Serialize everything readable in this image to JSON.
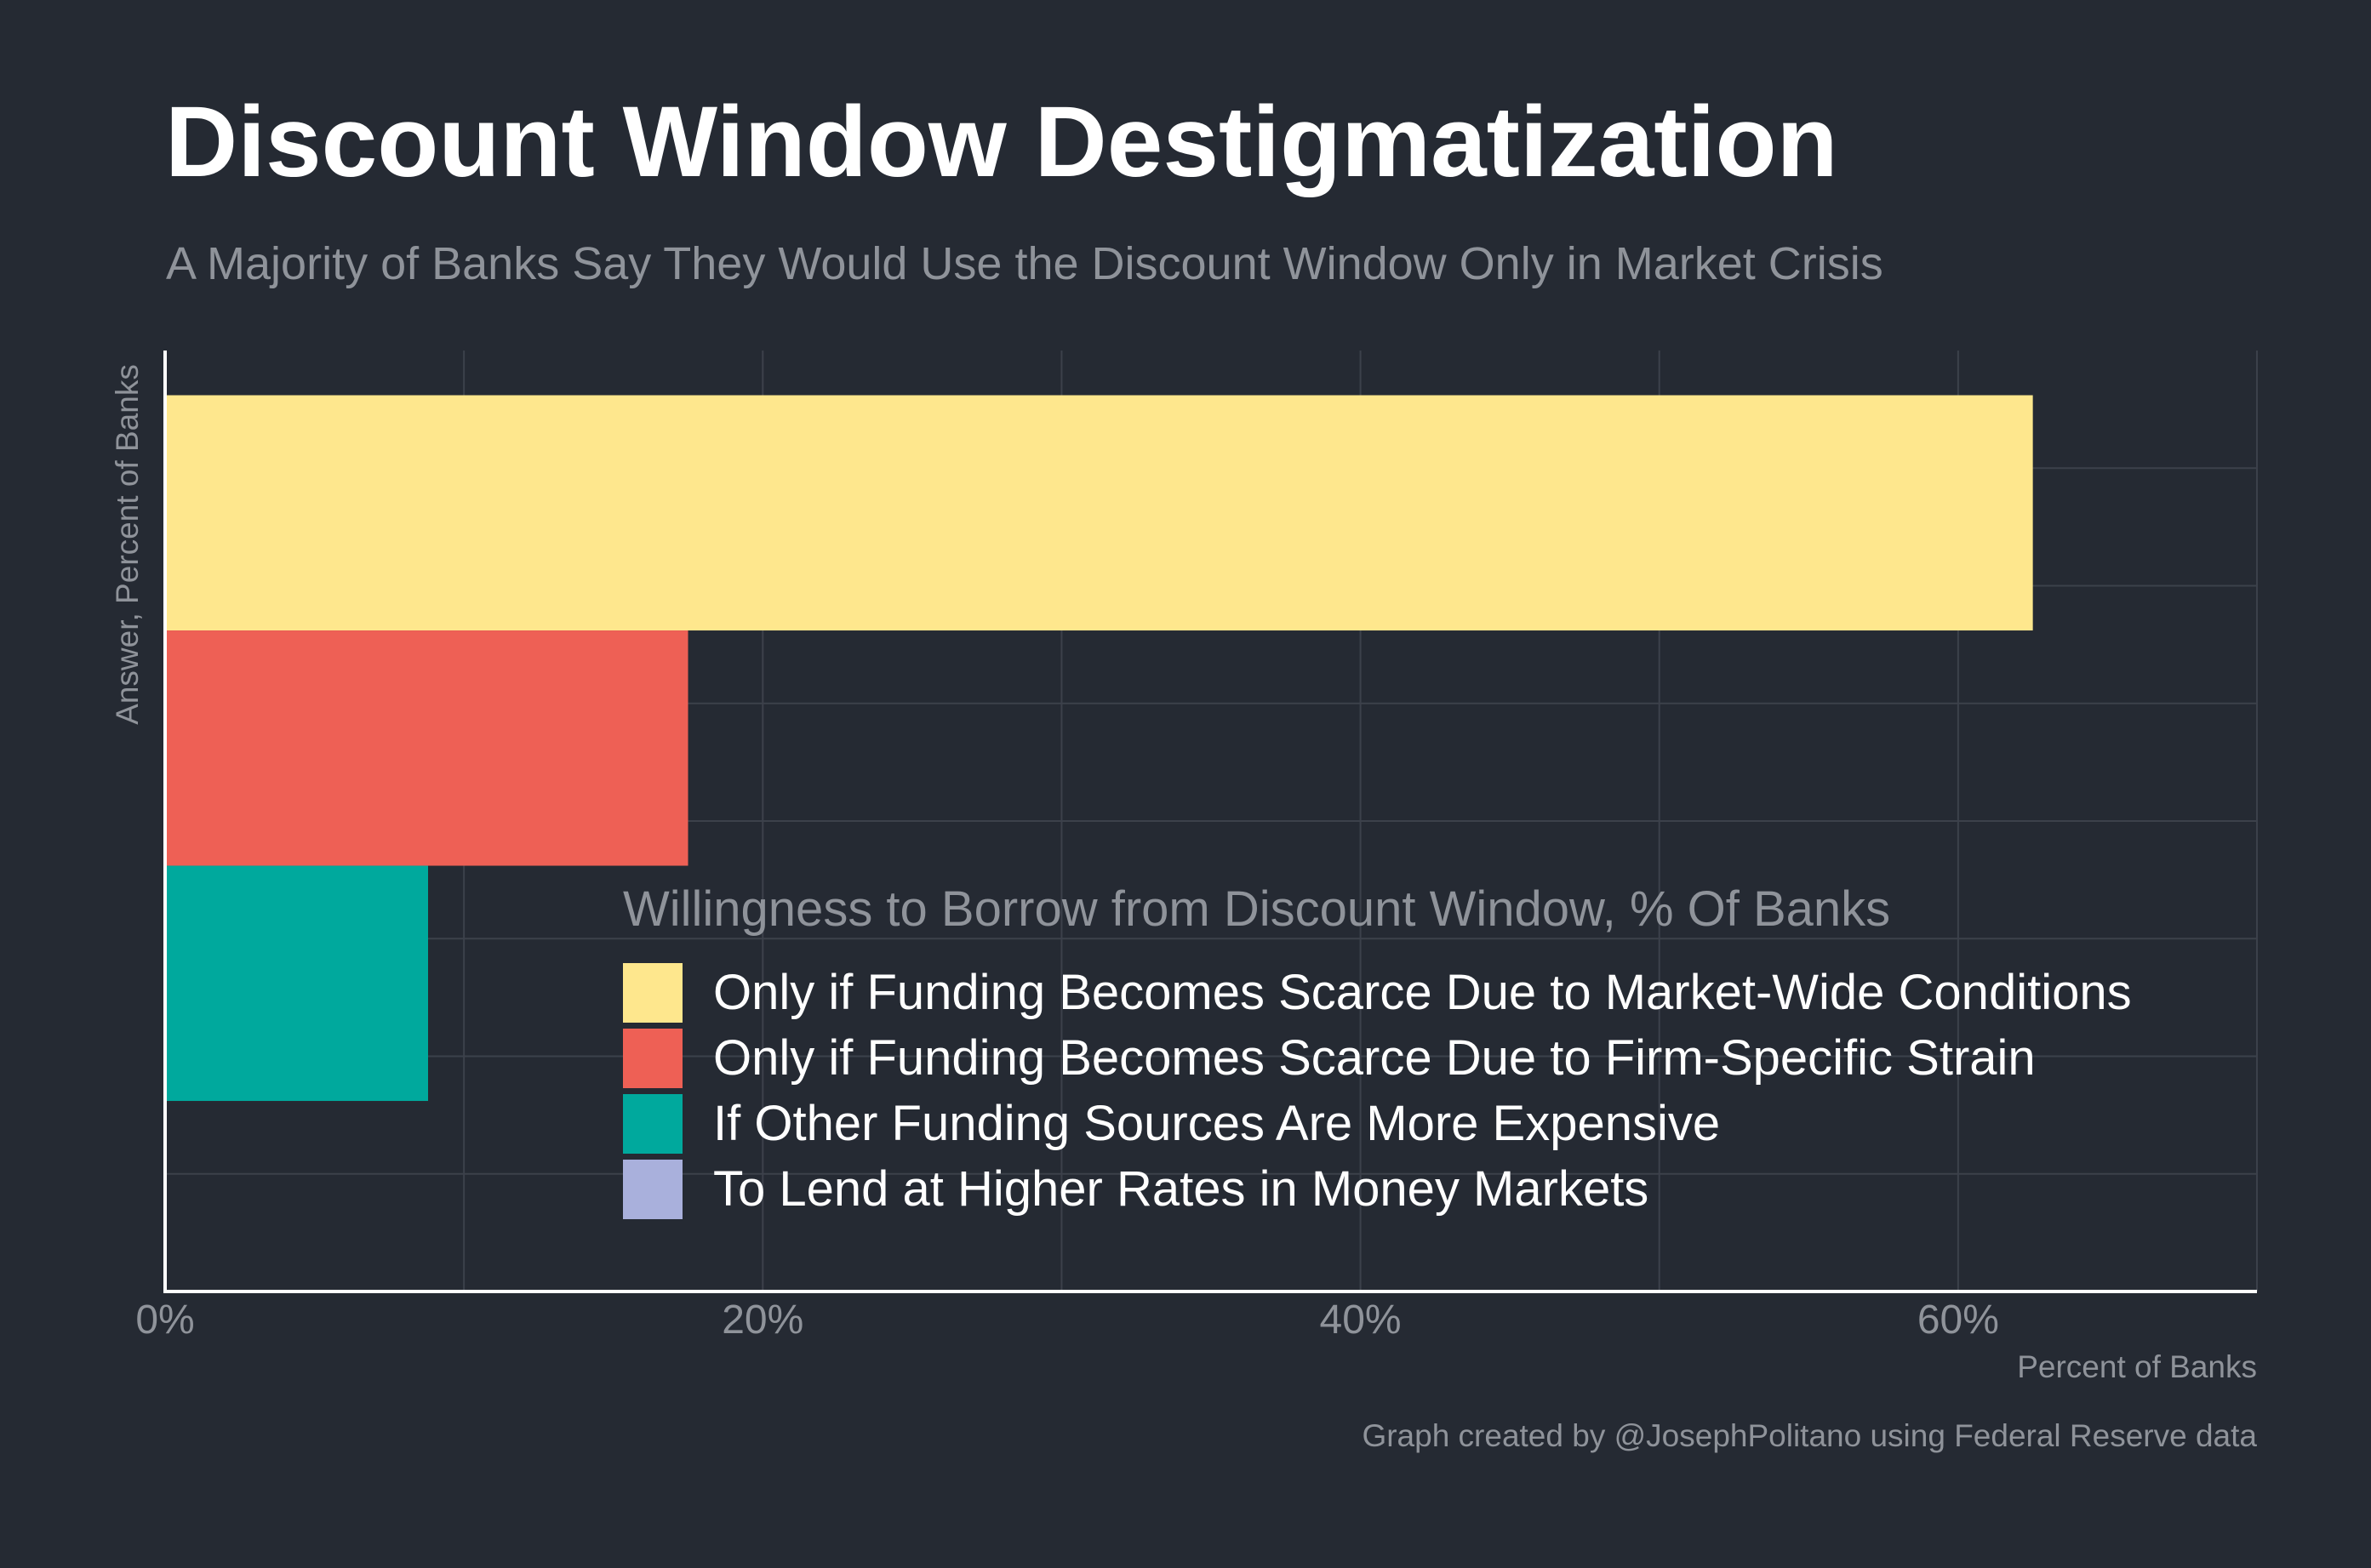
{
  "header": {
    "title": "Discount Window Destigmatization",
    "subtitle": "A Majority of Banks Say They Would Use the Discount Window Only in Market Crisis"
  },
  "footer": {
    "caption": "Graph created by @JosephPolitano using Federal Reserve data"
  },
  "colors": {
    "background": "#252a33",
    "grid": "#3c414b",
    "axis": "#ffffff",
    "muted_text": "#8f939a"
  },
  "chart_data": {
    "type": "bar",
    "orientation": "horizontal",
    "title": "Discount Window Destigmatization",
    "subtitle": "A Majority of Banks Say They Would Use the Discount Window Only in Market Crisis",
    "xlabel": "Percent of Banks",
    "ylabel": "Answer, Percent of Banks",
    "xlim": [
      0,
      70
    ],
    "x_ticks": [
      0,
      20,
      40,
      60
    ],
    "x_tick_labels": [
      "0%",
      "20%",
      "40%",
      "60%"
    ],
    "grid": true,
    "legend_title": "Willingness to Borrow from Discount Window, % Of Banks",
    "legend_position": "bottom-right inside plot",
    "series": [
      {
        "name": "Only if Funding Becomes Scarce Due to Market-Wide Conditions",
        "value": 62.5,
        "color": "#fee78d"
      },
      {
        "name": "Only if Funding Becomes Scarce Due to Firm-Specific Strain",
        "value": 17.5,
        "color": "#ee6055"
      },
      {
        "name": "If Other Funding Sources Are More Expensive",
        "value": 8.8,
        "color": "#00a99d"
      },
      {
        "name": "To Lend at Higher Rates in Money Markets",
        "value": 0,
        "color": "#a9b0dc"
      }
    ]
  }
}
